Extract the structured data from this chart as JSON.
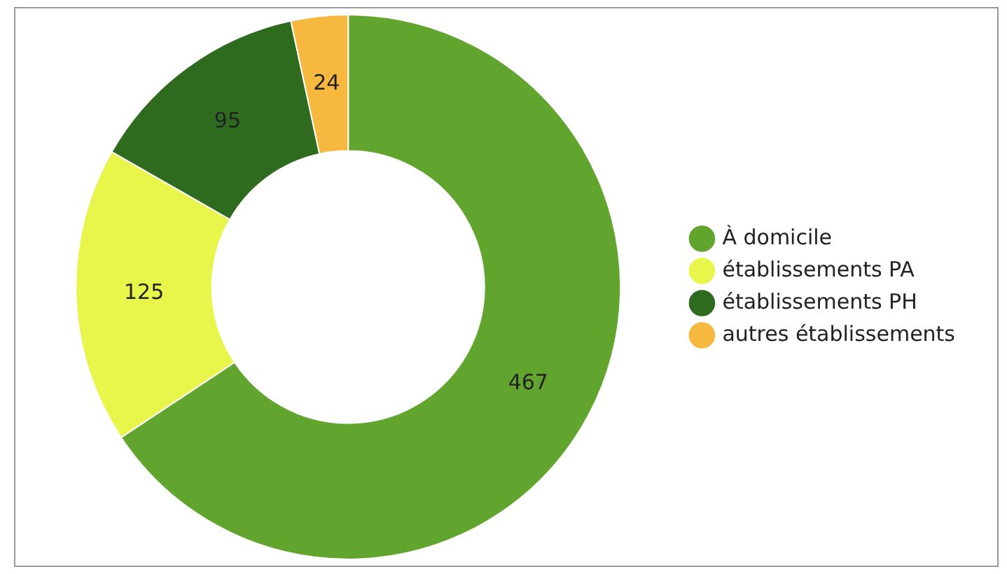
{
  "chart_data": {
    "type": "donut",
    "categories": [
      "À domicile",
      "établissements PA",
      "établissements PH",
      "autres établissements"
    ],
    "values": [
      467,
      125,
      95,
      24
    ],
    "colors": [
      "#62a52e",
      "#e8f54a",
      "#2e6b1f",
      "#f6b83f"
    ],
    "data_labels": true,
    "legend": "right"
  }
}
